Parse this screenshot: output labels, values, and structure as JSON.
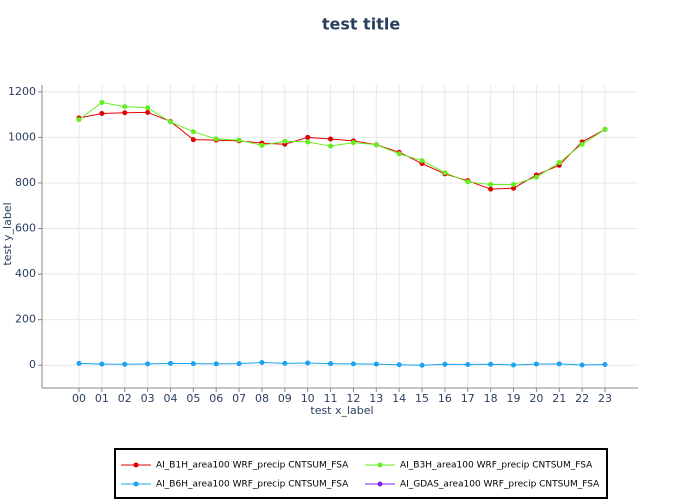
{
  "chart_data": {
    "type": "line",
    "title": "test title",
    "x_label": "test x_label",
    "y_label": "test y_label",
    "categories": [
      "00",
      "01",
      "02",
      "03",
      "04",
      "05",
      "06",
      "07",
      "08",
      "09",
      "10",
      "11",
      "12",
      "13",
      "14",
      "15",
      "16",
      "17",
      "18",
      "19",
      "20",
      "21",
      "22",
      "23"
    ],
    "series": [
      {
        "name": "AI_B1H_area100 WRF_precip CNTSUM_FSA",
        "color": "#e00000",
        "values": [
          1085,
          1105,
          1108,
          1110,
          1070,
          990,
          988,
          985,
          975,
          970,
          1000,
          993,
          985,
          968,
          935,
          885,
          840,
          810,
          773,
          777,
          835,
          878,
          980,
          1035
        ]
      },
      {
        "name": "AI_B3H_area100 WRF_precip CNTSUM_FSA",
        "color": "#66ee22",
        "values": [
          1078,
          1153,
          1135,
          1130,
          1068,
          1025,
          993,
          988,
          965,
          983,
          980,
          962,
          977,
          968,
          928,
          898,
          845,
          805,
          793,
          793,
          825,
          890,
          970,
          1035
        ]
      },
      {
        "name": "AI_B6H_area100 WRF_precip CNTSUM_FSA",
        "color": "#1aa3ee",
        "values": [
          8,
          5,
          4,
          6,
          8,
          7,
          6,
          7,
          12,
          8,
          10,
          7,
          6,
          5,
          2,
          0,
          4,
          3,
          4,
          1,
          5,
          6,
          1,
          3
        ]
      },
      {
        "name": "AI_GDAS_area100 WRF_precip CNTSUM_FSA",
        "color": "#7f22ee",
        "values": [
          null,
          null,
          null,
          null,
          null,
          null,
          null,
          null,
          null,
          null,
          null,
          null,
          null,
          null,
          null,
          null,
          null,
          null,
          null,
          null,
          null,
          null,
          null,
          null
        ]
      }
    ],
    "ylim": [
      -100,
      1230
    ],
    "yticks": [
      0,
      200,
      400,
      600,
      800,
      1000,
      1200
    ],
    "grid": true,
    "legend": "bottom"
  }
}
